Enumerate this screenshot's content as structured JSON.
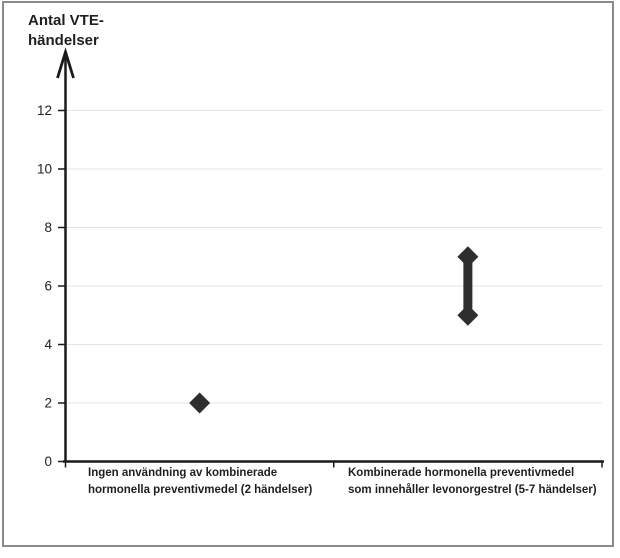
{
  "frame": {
    "border_color": "#8a8a8a",
    "background": "#ffffff"
  },
  "chart_data": {
    "type": "scatter",
    "title": "Antal VTE-\nhändelser",
    "ylabel": "Antal VTE-händelser",
    "xlabel": "",
    "categories": [
      "Ingen användning av kombinerade\nhormonella preventivmedel (2 händelser)",
      "Kombinerade hormonella preventivmedel\nsom innehåller levonorgestrel (5-7 händelser)"
    ],
    "points": [
      {
        "category_index": 0,
        "values": [
          2
        ],
        "connected": false
      },
      {
        "category_index": 1,
        "values": [
          5,
          7
        ],
        "connected": true
      }
    ],
    "yticks": [
      0,
      2,
      4,
      6,
      8,
      10,
      12
    ],
    "ylim": [
      0,
      14
    ],
    "grid": true,
    "legend": false,
    "marker": "diamond",
    "colors": {
      "marker": "#2e2e2e",
      "axis": "#1a1a1a",
      "gridline": "#e4e4e4",
      "text": "#1f1f1f"
    }
  }
}
